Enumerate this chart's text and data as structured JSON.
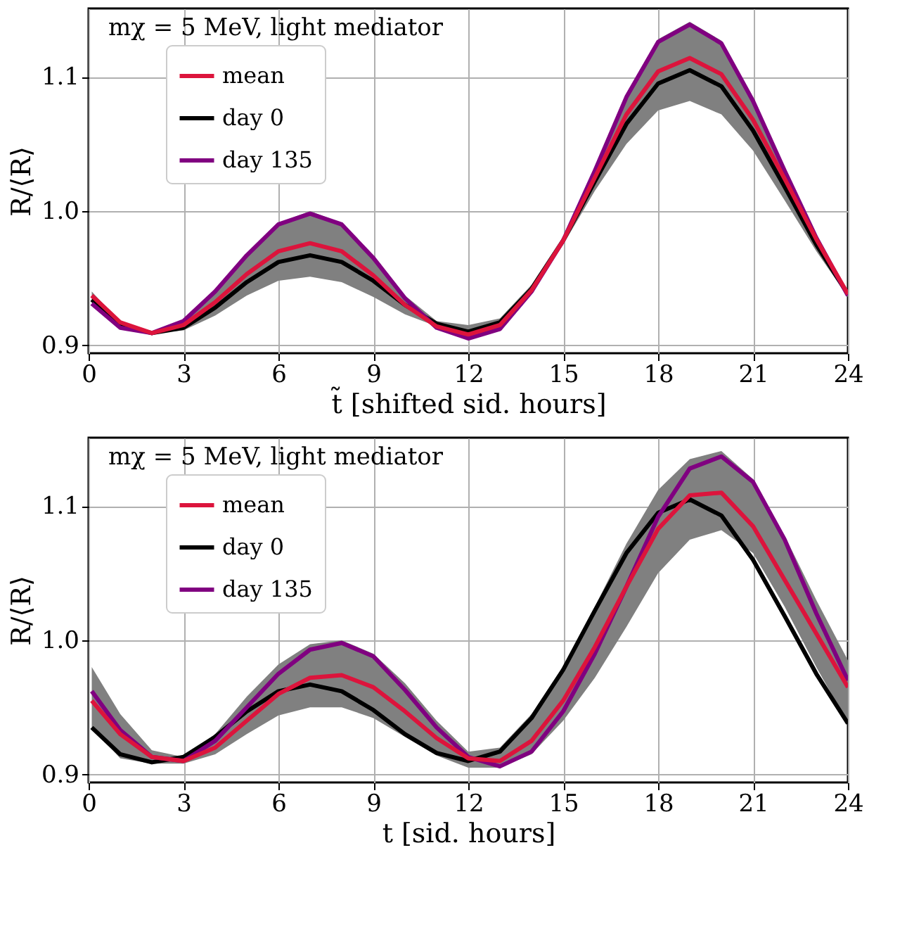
{
  "chart_data": [
    {
      "type": "line",
      "xlabel": "t̃ [shifted sid. hours]",
      "ylabel": "R/⟨R⟩",
      "annotations": [
        "mχ = 5 MeV, light mediator"
      ],
      "x": [
        0.1,
        1,
        2,
        3,
        4,
        5,
        6,
        7,
        8,
        9,
        10,
        11,
        12,
        13,
        14,
        15,
        16,
        17,
        18,
        19,
        20,
        21,
        22,
        23,
        24
      ],
      "series": [
        {
          "name": "mean",
          "color": "#dc143c",
          "values": [
            0.937,
            0.917,
            0.909,
            0.915,
            0.932,
            0.953,
            0.97,
            0.976,
            0.97,
            0.952,
            0.93,
            0.914,
            0.908,
            0.915,
            0.941,
            0.978,
            1.025,
            1.072,
            1.104,
            1.114,
            1.102,
            1.068,
            1.024,
            0.979,
            0.938
          ],
          "lower": [
            0.932,
            0.913,
            0.909,
            0.911,
            0.922,
            0.937,
            0.948,
            0.951,
            0.947,
            0.936,
            0.923,
            0.914,
            0.905,
            0.912,
            0.94,
            0.975,
            1.015,
            1.05,
            1.075,
            1.082,
            1.072,
            1.045,
            1.008,
            0.97,
            0.936
          ],
          "upper": [
            0.94,
            0.917,
            0.91,
            0.919,
            0.941,
            0.968,
            0.991,
            1.0,
            0.991,
            0.967,
            0.937,
            0.918,
            0.915,
            0.92,
            0.945,
            0.981,
            1.032,
            1.087,
            1.128,
            1.141,
            1.127,
            1.084,
            1.032,
            0.982,
            0.939
          ]
        },
        {
          "name": "day 0",
          "color": "#000000",
          "values": [
            0.934,
            0.915,
            0.909,
            0.913,
            0.928,
            0.947,
            0.962,
            0.967,
            0.962,
            0.948,
            0.93,
            0.916,
            0.91,
            0.917,
            0.942,
            0.978,
            1.022,
            1.065,
            1.095,
            1.105,
            1.093,
            1.06,
            1.018,
            0.975,
            0.938
          ]
        },
        {
          "name": "day 135",
          "color": "#800080",
          "values": [
            0.931,
            0.913,
            0.909,
            0.918,
            0.94,
            0.967,
            0.99,
            0.998,
            0.99,
            0.965,
            0.935,
            0.913,
            0.905,
            0.912,
            0.94,
            0.978,
            1.03,
            1.085,
            1.126,
            1.139,
            1.125,
            1.082,
            1.03,
            0.98,
            0.937
          ]
        }
      ],
      "xlim": [
        0,
        24
      ],
      "xticks": [
        0,
        3,
        6,
        9,
        12,
        15,
        18,
        21,
        24
      ],
      "ylim": [
        0.894,
        1.151
      ],
      "yticks": [
        {
          "value": 0.9,
          "label": "0.9"
        },
        {
          "value": 1.0,
          "label": "1.0"
        },
        {
          "value": 1.1,
          "label": "1.1"
        }
      ],
      "grid": true,
      "legend": "top left",
      "line_style": "solid",
      "marker": "none"
    },
    {
      "type": "line",
      "xlabel": "t [sid. hours]",
      "ylabel": "R/⟨R⟩",
      "annotations": [
        "mχ = 5 MeV, light mediator"
      ],
      "x": [
        0.1,
        1,
        2,
        3,
        4,
        5,
        6,
        7,
        8,
        9,
        10,
        11,
        12,
        13,
        14,
        15,
        16,
        17,
        18,
        19,
        20,
        21,
        22,
        23,
        24
      ],
      "series": [
        {
          "name": "mean",
          "color": "#dc143c",
          "values": [
            0.955,
            0.93,
            0.913,
            0.91,
            0.92,
            0.94,
            0.96,
            0.972,
            0.974,
            0.965,
            0.947,
            0.927,
            0.912,
            0.91,
            0.925,
            0.955,
            0.995,
            1.04,
            1.083,
            1.108,
            1.11,
            1.085,
            1.045,
            1.005,
            0.965
          ],
          "lower": [
            0.935,
            0.912,
            0.908,
            0.908,
            0.915,
            0.93,
            0.944,
            0.95,
            0.95,
            0.942,
            0.928,
            0.914,
            0.905,
            0.905,
            0.915,
            0.94,
            0.972,
            1.01,
            1.05,
            1.075,
            1.082,
            1.065,
            1.025,
            0.98,
            0.938
          ],
          "upper": [
            0.98,
            0.945,
            0.918,
            0.913,
            0.93,
            0.958,
            0.982,
            0.997,
            1.0,
            0.99,
            0.968,
            0.94,
            0.917,
            0.92,
            0.945,
            0.98,
            1.025,
            1.072,
            1.112,
            1.135,
            1.141,
            1.12,
            1.078,
            1.03,
            0.985
          ]
        },
        {
          "name": "day 0",
          "color": "#000000",
          "values": [
            0.935,
            0.915,
            0.909,
            0.913,
            0.928,
            0.947,
            0.962,
            0.967,
            0.962,
            0.948,
            0.93,
            0.916,
            0.91,
            0.917,
            0.942,
            0.978,
            1.022,
            1.065,
            1.095,
            1.105,
            1.093,
            1.06,
            1.018,
            0.975,
            0.938
          ]
        },
        {
          "name": "day 135",
          "color": "#800080",
          "values": [
            0.962,
            0.933,
            0.913,
            0.91,
            0.925,
            0.95,
            0.975,
            0.993,
            0.998,
            0.988,
            0.963,
            0.935,
            0.913,
            0.906,
            0.917,
            0.947,
            0.99,
            1.04,
            1.092,
            1.128,
            1.137,
            1.118,
            1.075,
            1.02,
            0.97
          ]
        }
      ],
      "xlim": [
        0,
        24
      ],
      "xticks": [
        0,
        3,
        6,
        9,
        12,
        15,
        18,
        21,
        24
      ],
      "ylim": [
        0.894,
        1.151
      ],
      "yticks": [
        {
          "value": 0.9,
          "label": "0.9"
        },
        {
          "value": 1.0,
          "label": "1.0"
        },
        {
          "value": 1.1,
          "label": "1.1"
        }
      ],
      "grid": true,
      "legend": "top left",
      "line_style": "solid",
      "marker": "none"
    }
  ]
}
